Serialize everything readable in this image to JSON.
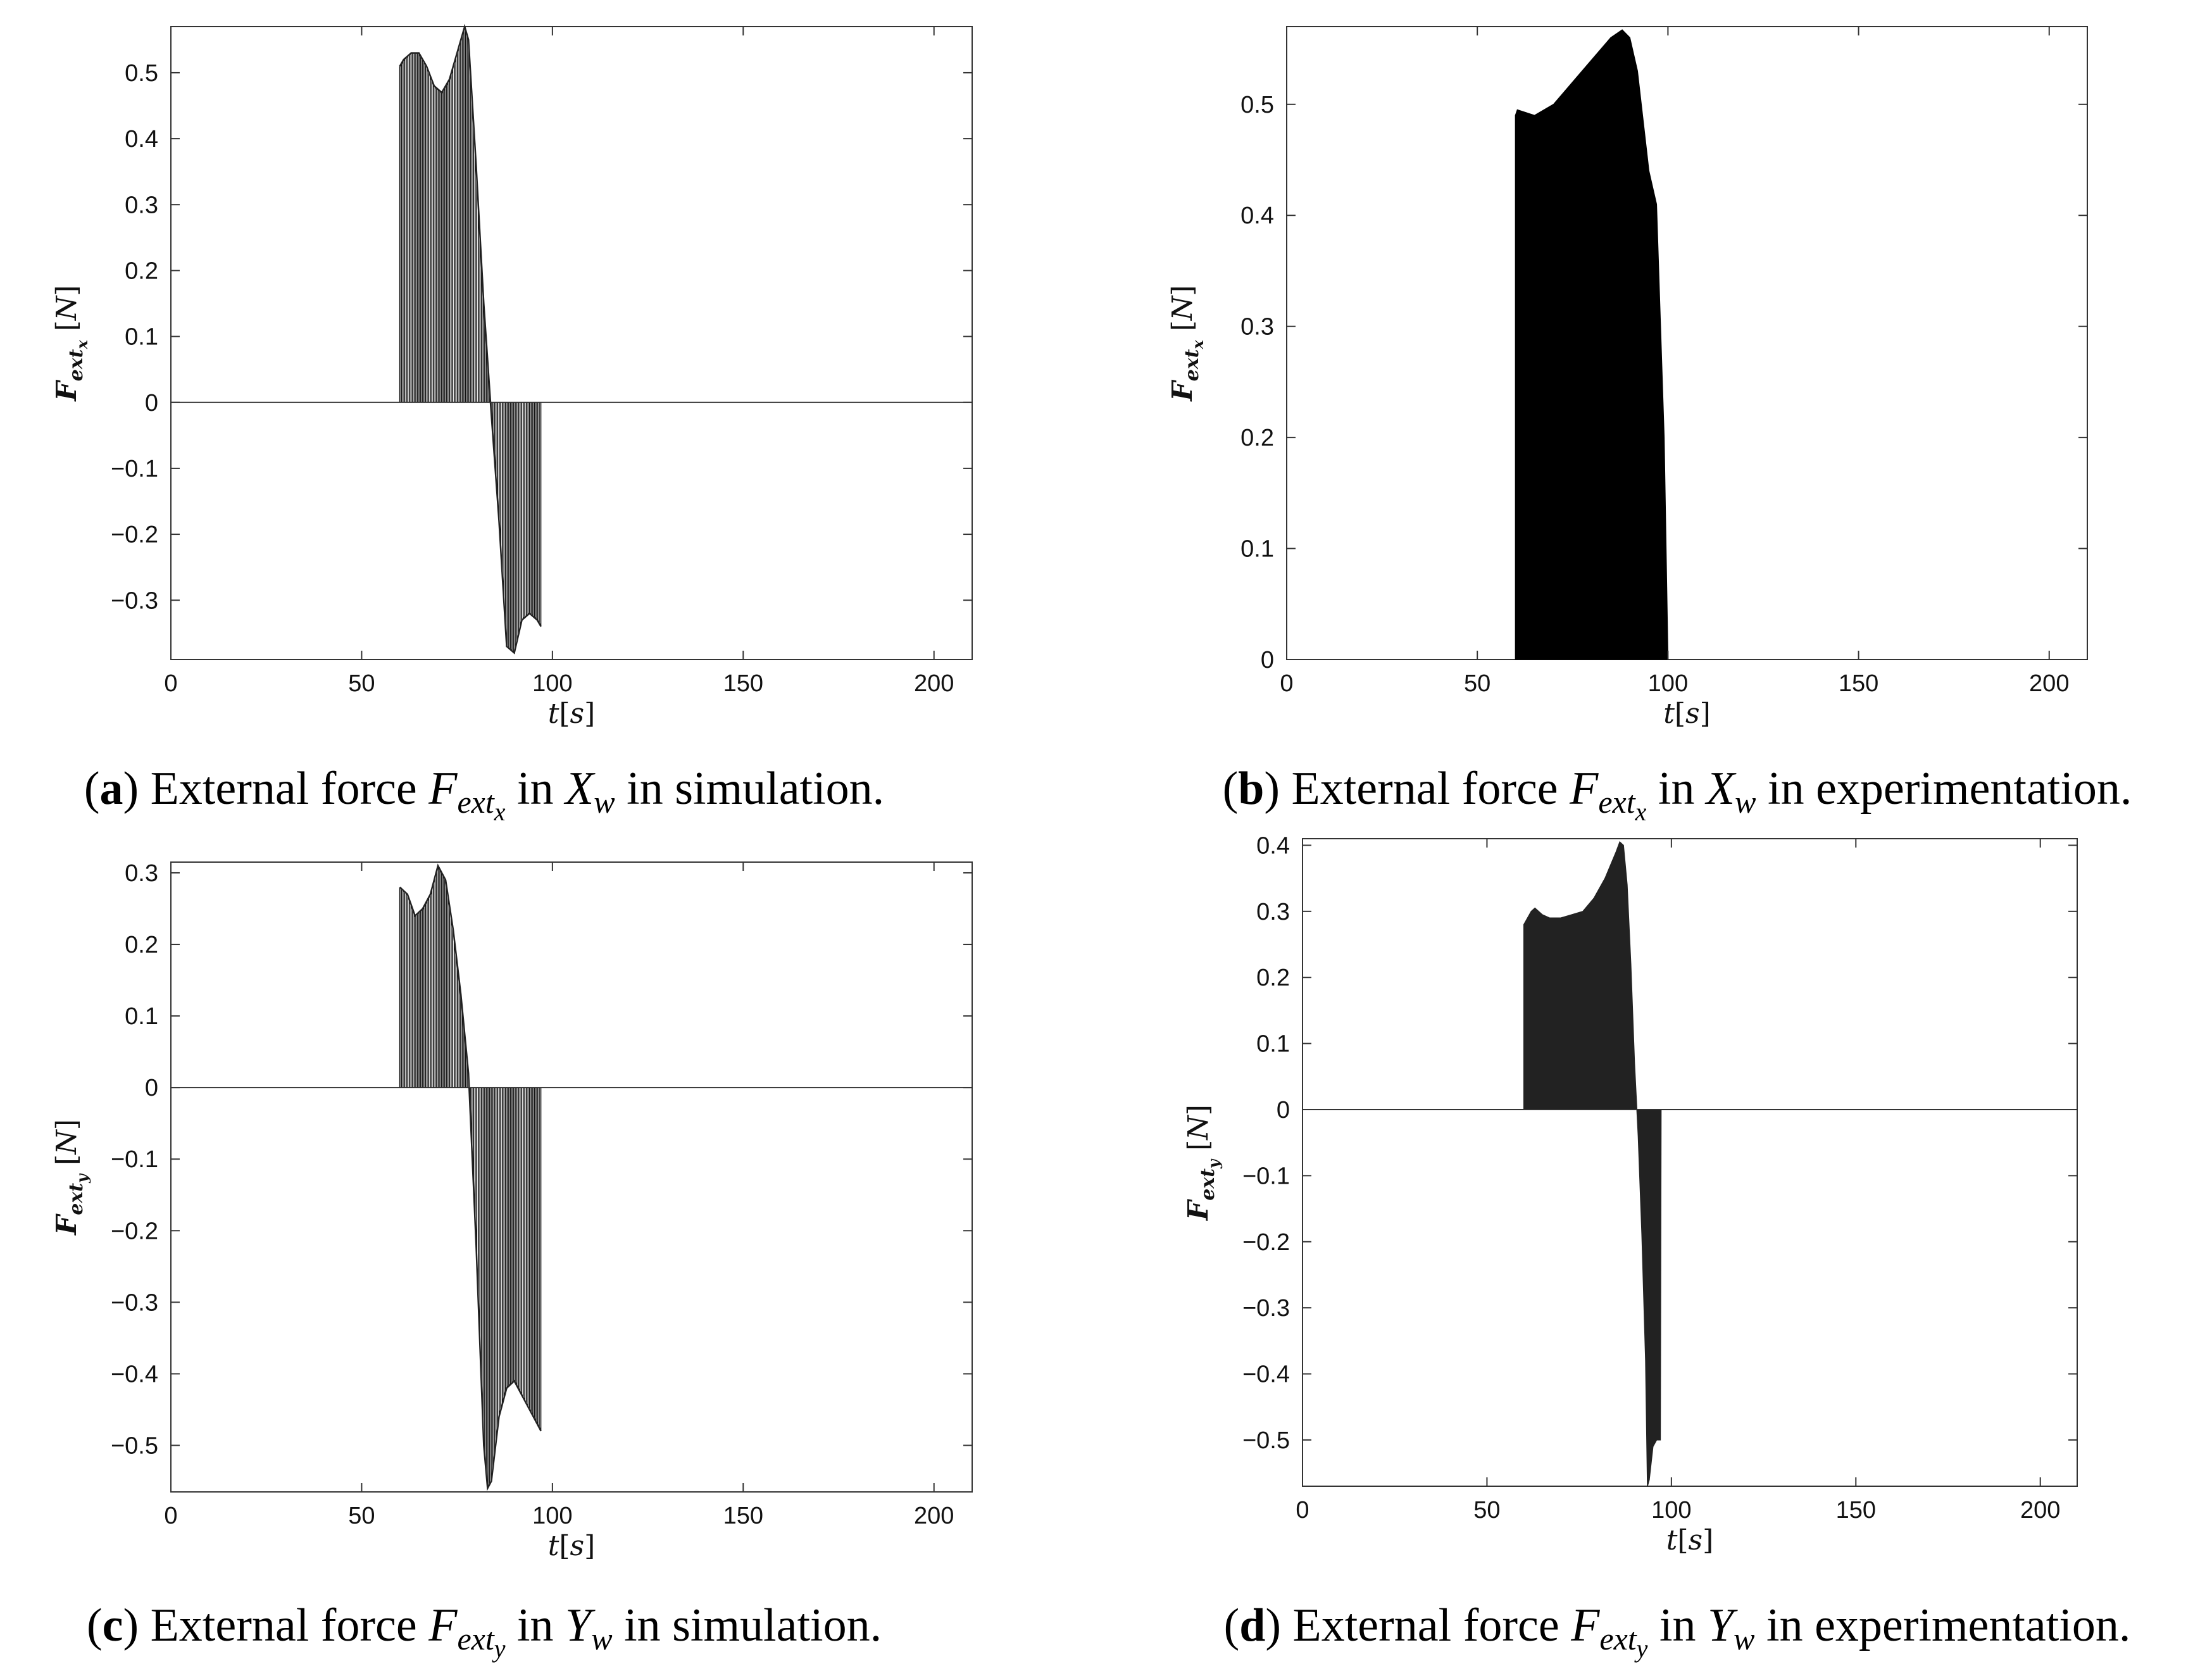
{
  "chart_data": [
    {
      "id": "a",
      "type": "area",
      "panel_letter": "a",
      "caption": {
        "prefix": "External force ",
        "symbol": "F",
        "symbol_sub": "ext",
        "symbol_subsub": "x",
        "mid": " in ",
        "axis": "X",
        "axis_sub": "w",
        "suffix": " in simulation."
      },
      "xlabel": {
        "var": "t",
        "unit": "s"
      },
      "ylabel": {
        "var": "F",
        "sub": "ext",
        "subsub": "x",
        "unit": "N"
      },
      "xlim": [
        0,
        210
      ],
      "ylim": [
        -0.39,
        0.57
      ],
      "xticks": [
        "0",
        "50",
        "100",
        "150",
        "200"
      ],
      "xtick_values": [
        0,
        50,
        100,
        150,
        200
      ],
      "yticks": [
        "-0.3",
        "-0.2",
        "-0.1",
        "0",
        "0.1",
        "0.2",
        "0.3",
        "0.4",
        "0.5"
      ],
      "ytick_values": [
        -0.3,
        -0.2,
        -0.1,
        0,
        0.1,
        0.2,
        0.3,
        0.4,
        0.5
      ],
      "style": "striped",
      "envelope": {
        "x": [
          60,
          61,
          63,
          65,
          67,
          69,
          71,
          73,
          75,
          77,
          78,
          80,
          82,
          84,
          86,
          88,
          90,
          92,
          94,
          96,
          97
        ],
        "y": [
          0.51,
          0.52,
          0.53,
          0.53,
          0.51,
          0.48,
          0.47,
          0.49,
          0.53,
          0.57,
          0.55,
          0.36,
          0.15,
          -0.02,
          -0.18,
          -0.37,
          -0.38,
          -0.33,
          -0.32,
          -0.33,
          -0.34
        ]
      },
      "grid": false
    },
    {
      "id": "b",
      "type": "area",
      "panel_letter": "b",
      "caption": {
        "prefix": "External force ",
        "symbol": "F",
        "symbol_sub": "ext",
        "symbol_subsub": "x",
        "mid": " in ",
        "axis": "X",
        "axis_sub": "w",
        "suffix": " in experimentation."
      },
      "xlabel": {
        "var": "t",
        "unit": "s"
      },
      "ylabel": {
        "var": "F",
        "sub": "ext",
        "subsub": "x",
        "unit": "N"
      },
      "xlim": [
        0,
        210
      ],
      "ylim": [
        0,
        0.57
      ],
      "xticks": [
        "0",
        "50",
        "100",
        "150",
        "200"
      ],
      "xtick_values": [
        0,
        50,
        100,
        150,
        200
      ],
      "yticks": [
        "0",
        "0.1",
        "0.2",
        "0.3",
        "0.4",
        "0.5"
      ],
      "ytick_values": [
        0,
        0.1,
        0.2,
        0.3,
        0.4,
        0.5
      ],
      "style": "solid",
      "envelope": {
        "x": [
          60,
          60.5,
          65,
          70,
          75,
          80,
          85,
          88,
          90,
          92,
          95,
          97,
          99,
          100
        ],
        "y": [
          0.49,
          0.495,
          0.49,
          0.5,
          0.52,
          0.54,
          0.56,
          0.567,
          0.56,
          0.53,
          0.44,
          0.41,
          0.2,
          0.0
        ]
      },
      "grid": false
    },
    {
      "id": "c",
      "type": "area",
      "panel_letter": "c",
      "caption": {
        "prefix": "External force ",
        "symbol": "F",
        "symbol_sub": "ext",
        "symbol_subsub": "y",
        "mid": " in ",
        "axis": "Y",
        "axis_sub": "w",
        "suffix": " in simulation."
      },
      "xlabel": {
        "var": "t",
        "unit": "s"
      },
      "ylabel": {
        "var": "F",
        "sub": "ext",
        "subsub": "y",
        "unit": "N"
      },
      "xlim": [
        0,
        210
      ],
      "ylim": [
        -0.565,
        0.315
      ],
      "xticks": [
        "0",
        "50",
        "100",
        "150",
        "200"
      ],
      "xtick_values": [
        0,
        50,
        100,
        150,
        200
      ],
      "yticks": [
        "-0.5",
        "-0.4",
        "-0.3",
        "-0.2",
        "-0.1",
        "0",
        "0.1",
        "0.2",
        "0.3"
      ],
      "ytick_values": [
        -0.5,
        -0.4,
        -0.3,
        -0.2,
        -0.1,
        0,
        0.1,
        0.2,
        0.3
      ],
      "style": "striped",
      "envelope": {
        "x": [
          60,
          62,
          64,
          66,
          68,
          70,
          72,
          74,
          76,
          78,
          80,
          82,
          83,
          84,
          86,
          88,
          90,
          92,
          94,
          96,
          97
        ],
        "y": [
          0.28,
          0.27,
          0.24,
          0.25,
          0.27,
          0.31,
          0.29,
          0.22,
          0.13,
          0.02,
          -0.22,
          -0.5,
          -0.56,
          -0.55,
          -0.46,
          -0.42,
          -0.41,
          -0.43,
          -0.45,
          -0.47,
          -0.48
        ]
      },
      "grid": false
    },
    {
      "id": "d",
      "type": "area",
      "panel_letter": "d",
      "caption": {
        "prefix": "External force ",
        "symbol": "F",
        "symbol_sub": "ext",
        "symbol_subsub": "y",
        "mid": " in ",
        "axis": "Y",
        "axis_sub": "w",
        "suffix": " in experimentation."
      },
      "xlabel": {
        "var": "t",
        "unit": "s"
      },
      "ylabel": {
        "var": "F",
        "sub": "ext",
        "subsub": "y",
        "unit": "N"
      },
      "xlim": [
        0,
        210
      ],
      "ylim": [
        -0.57,
        0.41
      ],
      "xticks": [
        "0",
        "50",
        "100",
        "150",
        "200"
      ],
      "xtick_values": [
        0,
        50,
        100,
        150,
        200
      ],
      "yticks": [
        "-0.5",
        "-0.4",
        "-0.3",
        "-0.2",
        "-0.1",
        "0",
        "0.1",
        "0.2",
        "0.3",
        "0.4"
      ],
      "ytick_values": [
        -0.5,
        -0.4,
        -0.3,
        -0.2,
        -0.1,
        0,
        0.1,
        0.2,
        0.3,
        0.4
      ],
      "style": "solid",
      "envelope": {
        "x": [
          60,
          61,
          62,
          63,
          65,
          67,
          70,
          73,
          76,
          79,
          82,
          85,
          86,
          87,
          88,
          89,
          90,
          91,
          92,
          93,
          93.5,
          94,
          95,
          96,
          97,
          97.2
        ],
        "y": [
          0.28,
          0.29,
          0.3,
          0.305,
          0.295,
          0.29,
          0.29,
          0.295,
          0.3,
          0.32,
          0.35,
          0.39,
          0.405,
          0.4,
          0.34,
          0.22,
          0.07,
          -0.04,
          -0.19,
          -0.38,
          -0.57,
          -0.56,
          -0.51,
          -0.5,
          -0.5,
          0.0
        ]
      },
      "grid": false
    }
  ]
}
